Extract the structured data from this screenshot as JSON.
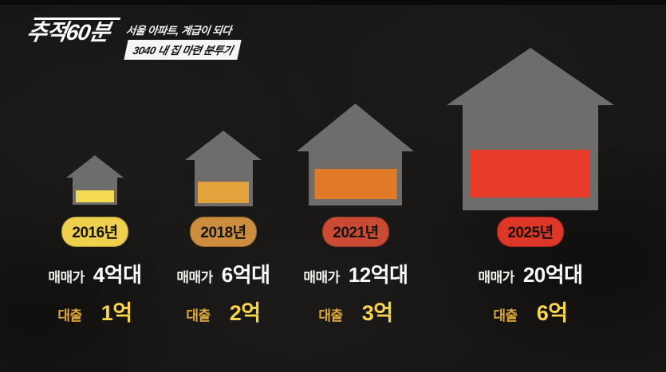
{
  "header": {
    "logo": "추적60분",
    "subtitle_line1": "서울 아파트, 계급이 되다",
    "subtitle_line2": "3040 내 집 마련 분투기"
  },
  "labels": {
    "price": "매매가",
    "loan": "대출"
  },
  "colors": {
    "background": "#181614",
    "house_gray": "#6f6d6b",
    "loan_label": "#dfa83c",
    "loan_value": "#f6d44c",
    "price_text": "#fbfaf8"
  },
  "houses": [
    {
      "year": "2016년",
      "price": "4억대",
      "loan": "1억",
      "bar_color": "#f4da52",
      "pill_color": "#eed04e"
    },
    {
      "year": "2018년",
      "price": "6억대",
      "loan": "2억",
      "bar_color": "#e2a33c",
      "pill_color": "#cd8d3e"
    },
    {
      "year": "2021년",
      "price": "12억대",
      "loan": "3억",
      "bar_color": "#e07a26",
      "pill_color": "#cb4a33"
    },
    {
      "year": "2025년",
      "price": "20억대",
      "loan": "6억",
      "bar_color": "#e83b2a",
      "pill_color": "#de3628"
    }
  ],
  "chart_data": {
    "type": "bar",
    "title": "3040 내 집 마련 분투기",
    "subtitle": "서울 아파트, 계급이 되다",
    "program": "추적60분",
    "categories": [
      "2016년",
      "2018년",
      "2021년",
      "2025년"
    ],
    "series": [
      {
        "name": "매매가",
        "unit": "억",
        "values": [
          4,
          6,
          12,
          20
        ],
        "labels": [
          "4억대",
          "6억대",
          "12억대",
          "20억대"
        ]
      },
      {
        "name": "대출",
        "unit": "억",
        "values": [
          1,
          2,
          3,
          6
        ],
        "labels": [
          "1억",
          "2억",
          "3억",
          "6억"
        ]
      }
    ],
    "legend_position": "none",
    "grid": false,
    "style": "pictogram houses sized by price, inner bar = loan amount"
  }
}
